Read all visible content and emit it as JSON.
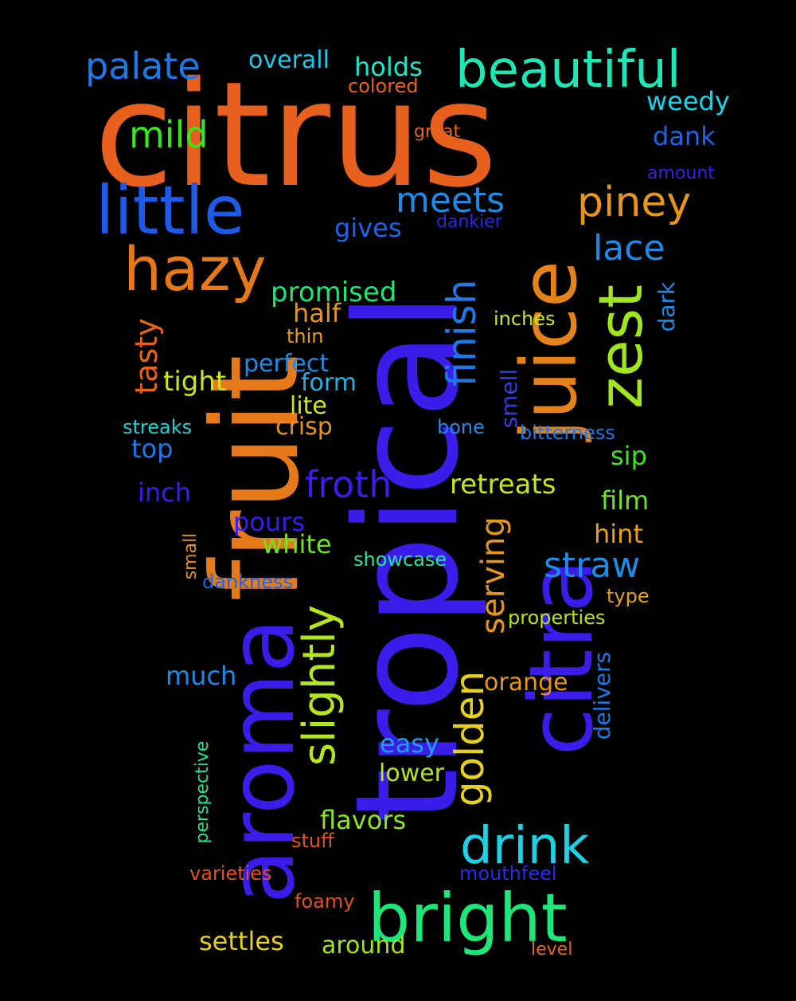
{
  "words": {
    "citrus": {
      "text": "citrus",
      "color": "#e8601e"
    },
    "tropical": {
      "text": "tropical",
      "color": "#3a1de8"
    },
    "fruit": {
      "text": "fruit",
      "color": "#e67a1a"
    },
    "aroma": {
      "text": "aroma",
      "color": "#3a1de8"
    },
    "citra": {
      "text": "citra",
      "color": "#3a1de8"
    },
    "juice": {
      "text": "juice",
      "color": "#e6821a"
    },
    "bright": {
      "text": "bright",
      "color": "#1ee67a"
    },
    "little": {
      "text": "little",
      "color": "#1e5ae8"
    },
    "hazy": {
      "text": "hazy",
      "color": "#e6781a"
    },
    "beautiful": {
      "text": "beautiful",
      "color": "#1ee6b4"
    },
    "zest": {
      "text": "zest",
      "color": "#a0e61e"
    },
    "drink": {
      "text": "drink",
      "color": "#1ed2e6"
    },
    "slightly": {
      "text": "slightly",
      "color": "#b4e61e"
    },
    "golden": {
      "text": "golden",
      "color": "#e6d21e"
    },
    "piney": {
      "text": "piney",
      "color": "#e6961a"
    },
    "finish": {
      "text": "finish",
      "color": "#1e78e6"
    },
    "meets": {
      "text": "meets",
      "color": "#1e8ce6"
    },
    "mild": {
      "text": "mild",
      "color": "#3ce61e"
    },
    "palate": {
      "text": "palate",
      "color": "#1e78e6"
    },
    "froth": {
      "text": "froth",
      "color": "#3a1de8"
    },
    "straw": {
      "text": "straw",
      "color": "#1e8ce6"
    },
    "lace": {
      "text": "lace",
      "color": "#1e8ce6"
    },
    "serving": {
      "text": "serving",
      "color": "#e6961a"
    },
    "promised": {
      "text": "promised",
      "color": "#1ee66e"
    },
    "tasty": {
      "text": "tasty",
      "color": "#e6641a"
    },
    "tight": {
      "text": "tight",
      "color": "#c8e61e"
    },
    "retreats": {
      "text": "retreats",
      "color": "#c8e61e"
    },
    "overall": {
      "text": "overall",
      "color": "#1ec8e6"
    },
    "holds": {
      "text": "holds",
      "color": "#1ee6c8"
    },
    "colored": {
      "text": "colored",
      "color": "#e6641a"
    },
    "weedy": {
      "text": "weedy",
      "color": "#1ed2e6"
    },
    "dank": {
      "text": "dank",
      "color": "#1e64e6"
    },
    "great": {
      "text": "great",
      "color": "#e6641a"
    },
    "amount": {
      "text": "amount",
      "color": "#3a1de8"
    },
    "gives": {
      "text": "gives",
      "color": "#1e64e6"
    },
    "dankier": {
      "text": "dankier",
      "color": "#2a2ae6"
    },
    "half": {
      "text": "half",
      "color": "#e6961a"
    },
    "thin": {
      "text": "thin",
      "color": "#e6a01a"
    },
    "inches": {
      "text": "inches",
      "color": "#c8e61e"
    },
    "dark": {
      "text": "dark",
      "color": "#1e8ce6"
    },
    "perfect": {
      "text": "perfect",
      "color": "#1e8ce6"
    },
    "form": {
      "text": "form",
      "color": "#1eb4e6"
    },
    "lite": {
      "text": "lite",
      "color": "#d2e61e"
    },
    "crisp": {
      "text": "crisp",
      "color": "#e6961a"
    },
    "smell": {
      "text": "smell",
      "color": "#3a3ae6"
    },
    "streaks": {
      "text": "streaks",
      "color": "#1ed2d2"
    },
    "bone": {
      "text": "bone",
      "color": "#1e8ce6"
    },
    "bitterness": {
      "text": "bitterness",
      "color": "#1e78e6"
    },
    "top": {
      "text": "top",
      "color": "#1e78e6"
    },
    "sip": {
      "text": "sip",
      "color": "#3ce61e"
    },
    "inch": {
      "text": "inch",
      "color": "#3a1de8"
    },
    "film": {
      "text": "film",
      "color": "#6ee61e"
    },
    "pours": {
      "text": "pours",
      "color": "#3a1de8"
    },
    "hint": {
      "text": "hint",
      "color": "#e6a01a"
    },
    "white": {
      "text": "white",
      "color": "#6ee61e"
    },
    "small": {
      "text": "small",
      "color": "#e6961a"
    },
    "showcase": {
      "text": "showcase",
      "color": "#1ee6a0"
    },
    "dankness": {
      "text": "dankness",
      "color": "#1e64e6"
    },
    "type": {
      "text": "type",
      "color": "#e6a01a"
    },
    "properties": {
      "text": "properties",
      "color": "#b4e61e"
    },
    "much": {
      "text": "much",
      "color": "#1e8ce6"
    },
    "delivers": {
      "text": "delivers",
      "color": "#1e78e6"
    },
    "orange": {
      "text": "orange",
      "color": "#e6961a"
    },
    "easy": {
      "text": "easy",
      "color": "#1ea0e6"
    },
    "perspective": {
      "text": "perspective",
      "color": "#1ee68c"
    },
    "lower": {
      "text": "lower",
      "color": "#b4e61e"
    },
    "flavors": {
      "text": "flavors",
      "color": "#8ce61e"
    },
    "stuff": {
      "text": "stuff",
      "color": "#e6501a"
    },
    "varieties": {
      "text": "varieties",
      "color": "#e6501a"
    },
    "mouthfeel": {
      "text": "mouthfeel",
      "color": "#2a2ae6"
    },
    "foamy": {
      "text": "foamy",
      "color": "#e6501a"
    },
    "settles": {
      "text": "settles",
      "color": "#e6d21e"
    },
    "around": {
      "text": "around",
      "color": "#a0e61e"
    },
    "level": {
      "text": "level",
      "color": "#e6641a"
    }
  }
}
